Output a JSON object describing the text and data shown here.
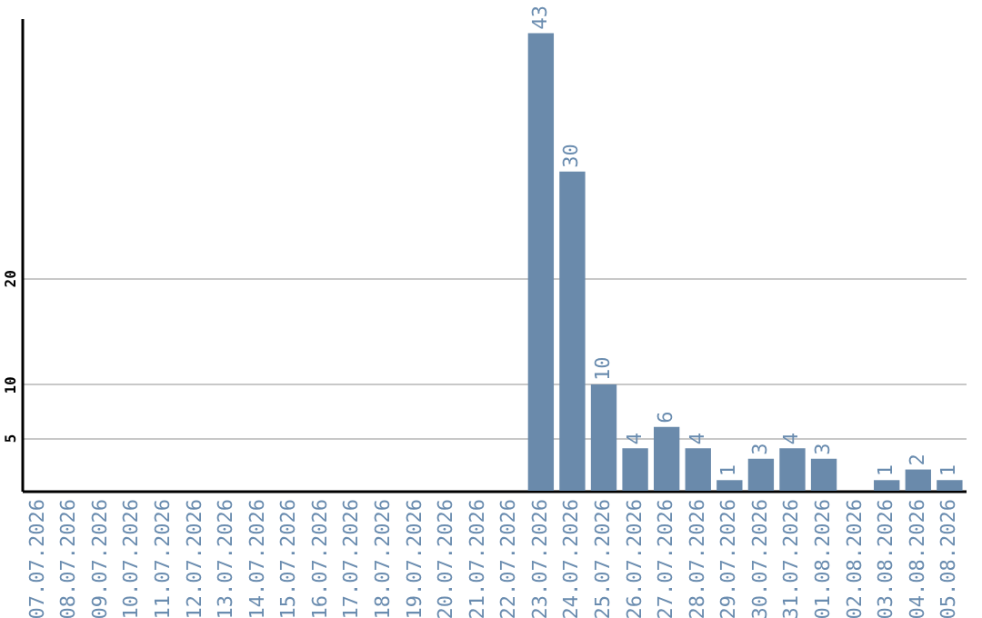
{
  "chart_data": {
    "type": "bar",
    "categories": [
      "07.07.2026",
      "08.07.2026",
      "09.07.2026",
      "10.07.2026",
      "11.07.2026",
      "12.07.2026",
      "13.07.2026",
      "14.07.2026",
      "15.07.2026",
      "16.07.2026",
      "17.07.2026",
      "18.07.2026",
      "19.07.2026",
      "20.07.2026",
      "21.07.2026",
      "22.07.2026",
      "23.07.2026",
      "24.07.2026",
      "25.07.2026",
      "26.07.2026",
      "27.07.2026",
      "28.07.2026",
      "29.07.2026",
      "30.07.2026",
      "31.07.2026",
      "01.08.2026",
      "02.08.2026",
      "03.08.2026",
      "04.08.2026",
      "05.08.2026"
    ],
    "values": [
      0,
      0,
      0,
      0,
      0,
      0,
      0,
      0,
      0,
      0,
      0,
      0,
      0,
      0,
      0,
      0,
      43,
      30,
      10,
      4,
      6,
      4,
      1,
      3,
      4,
      3,
      0,
      1,
      2,
      1
    ],
    "value_labels": [
      null,
      null,
      null,
      null,
      null,
      null,
      null,
      null,
      null,
      null,
      null,
      null,
      null,
      null,
      null,
      null,
      "43",
      "30",
      "10",
      "4",
      "6",
      "4",
      "1",
      "3",
      "4",
      "3",
      null,
      "1",
      "2",
      "1"
    ],
    "color": "#6a8aab",
    "ylim": [
      0,
      44.4
    ],
    "yticks": [
      5,
      10,
      20
    ],
    "grid": "y"
  }
}
